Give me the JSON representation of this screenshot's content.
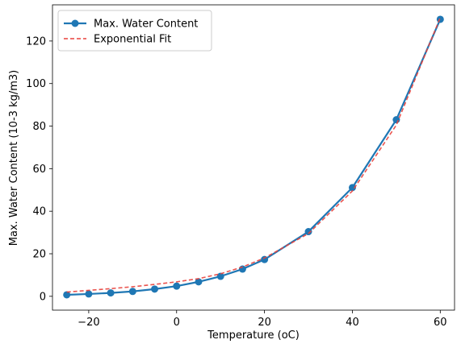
{
  "chart_data": {
    "type": "line",
    "xlabel": "Temperature (oC)",
    "ylabel": "Max. Water Content (10-3 kg/m3)",
    "xlim": [
      -28.25,
      63.25
    ],
    "ylim": [
      -6.5,
      137
    ],
    "x_ticks": [
      -20,
      0,
      20,
      40,
      60
    ],
    "x_tick_labels": [
      "−20",
      "0",
      "20",
      "40",
      "60"
    ],
    "y_ticks": [
      0,
      20,
      40,
      60,
      80,
      100,
      120
    ],
    "y_tick_labels": [
      "0",
      "20",
      "40",
      "60",
      "80",
      "100",
      "120"
    ],
    "grid": false,
    "legend_position": "top-left",
    "series": [
      {
        "name": "Max. Water Content",
        "style": "solid-line-with-circle-markers",
        "color": "#1f77b4",
        "x": [
          -25,
          -20,
          -15,
          -10,
          -5,
          0,
          5,
          10,
          15,
          20,
          30,
          40,
          50,
          60
        ],
        "y": [
          0.7,
          1.1,
          1.6,
          2.3,
          3.4,
          4.8,
          6.8,
          9.4,
          12.8,
          17.3,
          30.4,
          51.1,
          83.0,
          130.2
        ]
      },
      {
        "name": "Exponential Fit",
        "style": "dashed-line",
        "color": "#e8413c",
        "x": [
          -25,
          -20,
          -15,
          -10,
          -5,
          0,
          5,
          10,
          15,
          20,
          30,
          40,
          50,
          60
        ],
        "y": [
          2.0,
          2.8,
          3.6,
          4.5,
          5.6,
          6.8,
          8.3,
          10.6,
          13.8,
          18.0,
          29.5,
          49.5,
          80.5,
          131.0
        ]
      }
    ]
  }
}
